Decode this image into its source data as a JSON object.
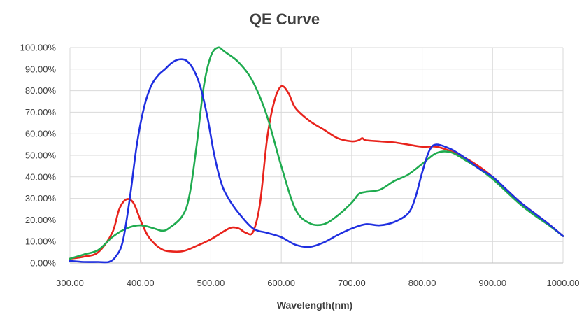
{
  "chart_data": {
    "type": "line",
    "title": "QE Curve",
    "xlabel": "Wavelength(nm)",
    "ylabel": "",
    "xlim": [
      300,
      1000
    ],
    "ylim": [
      0,
      100
    ],
    "x_ticks": [
      "300.00",
      "400.00",
      "500.00",
      "600.00",
      "700.00",
      "800.00",
      "900.00",
      "1000.00"
    ],
    "y_ticks": [
      "0.00%",
      "10.00%",
      "20.00%",
      "30.00%",
      "40.00%",
      "50.00%",
      "60.00%",
      "70.00%",
      "80.00%",
      "90.00%",
      "100.00%"
    ],
    "grid": true,
    "legend": "none",
    "series": [
      {
        "color": "#e8231c",
        "points": [
          [
            300,
            2
          ],
          [
            320,
            3
          ],
          [
            340,
            5
          ],
          [
            360,
            14
          ],
          [
            370,
            25
          ],
          [
            380,
            29.5
          ],
          [
            390,
            28
          ],
          [
            400,
            20
          ],
          [
            410,
            13
          ],
          [
            420,
            9
          ],
          [
            430,
            6.5
          ],
          [
            440,
            5.5
          ],
          [
            460,
            5.5
          ],
          [
            480,
            8
          ],
          [
            500,
            11
          ],
          [
            520,
            15
          ],
          [
            530,
            16.5
          ],
          [
            540,
            16
          ],
          [
            550,
            14
          ],
          [
            560,
            14.5
          ],
          [
            570,
            28
          ],
          [
            580,
            58
          ],
          [
            590,
            75
          ],
          [
            600,
            82
          ],
          [
            610,
            79
          ],
          [
            620,
            72
          ],
          [
            640,
            66
          ],
          [
            660,
            62
          ],
          [
            680,
            58
          ],
          [
            700,
            56.5
          ],
          [
            710,
            57
          ],
          [
            715,
            58
          ],
          [
            720,
            57
          ],
          [
            740,
            56.5
          ],
          [
            760,
            56
          ],
          [
            780,
            55
          ],
          [
            800,
            54
          ],
          [
            820,
            54
          ],
          [
            840,
            52
          ],
          [
            860,
            49
          ],
          [
            880,
            45
          ],
          [
            900,
            40
          ],
          [
            920,
            34
          ],
          [
            940,
            28
          ],
          [
            960,
            23
          ],
          [
            980,
            18
          ],
          [
            1000,
            12.5
          ]
        ]
      },
      {
        "color": "#1fab4f",
        "points": [
          [
            300,
            2
          ],
          [
            320,
            4
          ],
          [
            340,
            6
          ],
          [
            360,
            12
          ],
          [
            380,
            16
          ],
          [
            400,
            17.5
          ],
          [
            420,
            16
          ],
          [
            430,
            15
          ],
          [
            440,
            16
          ],
          [
            460,
            22
          ],
          [
            470,
            32
          ],
          [
            480,
            55
          ],
          [
            490,
            82
          ],
          [
            500,
            96
          ],
          [
            510,
            100
          ],
          [
            520,
            98
          ],
          [
            540,
            93
          ],
          [
            560,
            84
          ],
          [
            580,
            68
          ],
          [
            600,
            45
          ],
          [
            620,
            25
          ],
          [
            640,
            18.5
          ],
          [
            660,
            18
          ],
          [
            680,
            22
          ],
          [
            700,
            28
          ],
          [
            710,
            32
          ],
          [
            720,
            33
          ],
          [
            740,
            34
          ],
          [
            760,
            38
          ],
          [
            780,
            41
          ],
          [
            800,
            46
          ],
          [
            820,
            51
          ],
          [
            840,
            51.5
          ],
          [
            860,
            48
          ],
          [
            880,
            44
          ],
          [
            900,
            39
          ],
          [
            920,
            33
          ],
          [
            940,
            27
          ],
          [
            960,
            22
          ],
          [
            980,
            17.5
          ],
          [
            1000,
            12.5
          ]
        ]
      },
      {
        "color": "#1f2fe0",
        "points": [
          [
            300,
            1
          ],
          [
            320,
            0.5
          ],
          [
            340,
            0.5
          ],
          [
            355,
            0.5
          ],
          [
            365,
            3
          ],
          [
            375,
            10
          ],
          [
            385,
            30
          ],
          [
            395,
            55
          ],
          [
            405,
            72
          ],
          [
            415,
            82
          ],
          [
            425,
            87
          ],
          [
            435,
            90
          ],
          [
            445,
            93
          ],
          [
            455,
            94.5
          ],
          [
            465,
            94
          ],
          [
            475,
            90
          ],
          [
            485,
            82
          ],
          [
            495,
            68
          ],
          [
            505,
            50
          ],
          [
            515,
            37
          ],
          [
            525,
            30
          ],
          [
            540,
            23
          ],
          [
            560,
            16
          ],
          [
            580,
            14
          ],
          [
            600,
            12
          ],
          [
            620,
            8.5
          ],
          [
            640,
            7.5
          ],
          [
            660,
            9.5
          ],
          [
            680,
            13
          ],
          [
            700,
            16
          ],
          [
            720,
            18
          ],
          [
            740,
            17.5
          ],
          [
            760,
            19
          ],
          [
            780,
            23
          ],
          [
            790,
            30
          ],
          [
            800,
            42
          ],
          [
            810,
            52
          ],
          [
            820,
            55
          ],
          [
            840,
            53
          ],
          [
            860,
            49
          ],
          [
            880,
            44
          ],
          [
            900,
            40
          ],
          [
            920,
            34
          ],
          [
            940,
            28
          ],
          [
            960,
            23
          ],
          [
            980,
            18
          ],
          [
            1000,
            12.5
          ]
        ]
      }
    ]
  }
}
